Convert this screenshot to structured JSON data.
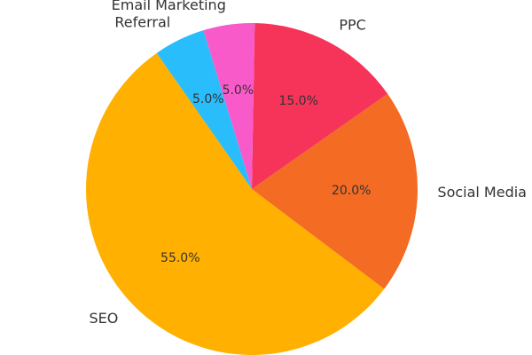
{
  "chart_data": {
    "type": "pie",
    "title": "",
    "start_angle_deg": 125,
    "direction": "counterclockwise",
    "slices": [
      {
        "label": "SEO",
        "value": 55.0,
        "pct_text": "55.0%",
        "color": "#FFB000"
      },
      {
        "label": "Social Media",
        "value": 20.0,
        "pct_text": "20.0%",
        "color": "#F46B23"
      },
      {
        "label": "PPC",
        "value": 15.0,
        "pct_text": "15.0%",
        "color": "#F6345A"
      },
      {
        "label": "Email Marketing",
        "value": 5.0,
        "pct_text": "5.0%",
        "color": "#F95ACA"
      },
      {
        "label": "Referral",
        "value": 5.0,
        "pct_text": "5.0%",
        "color": "#29BDFB"
      }
    ]
  }
}
